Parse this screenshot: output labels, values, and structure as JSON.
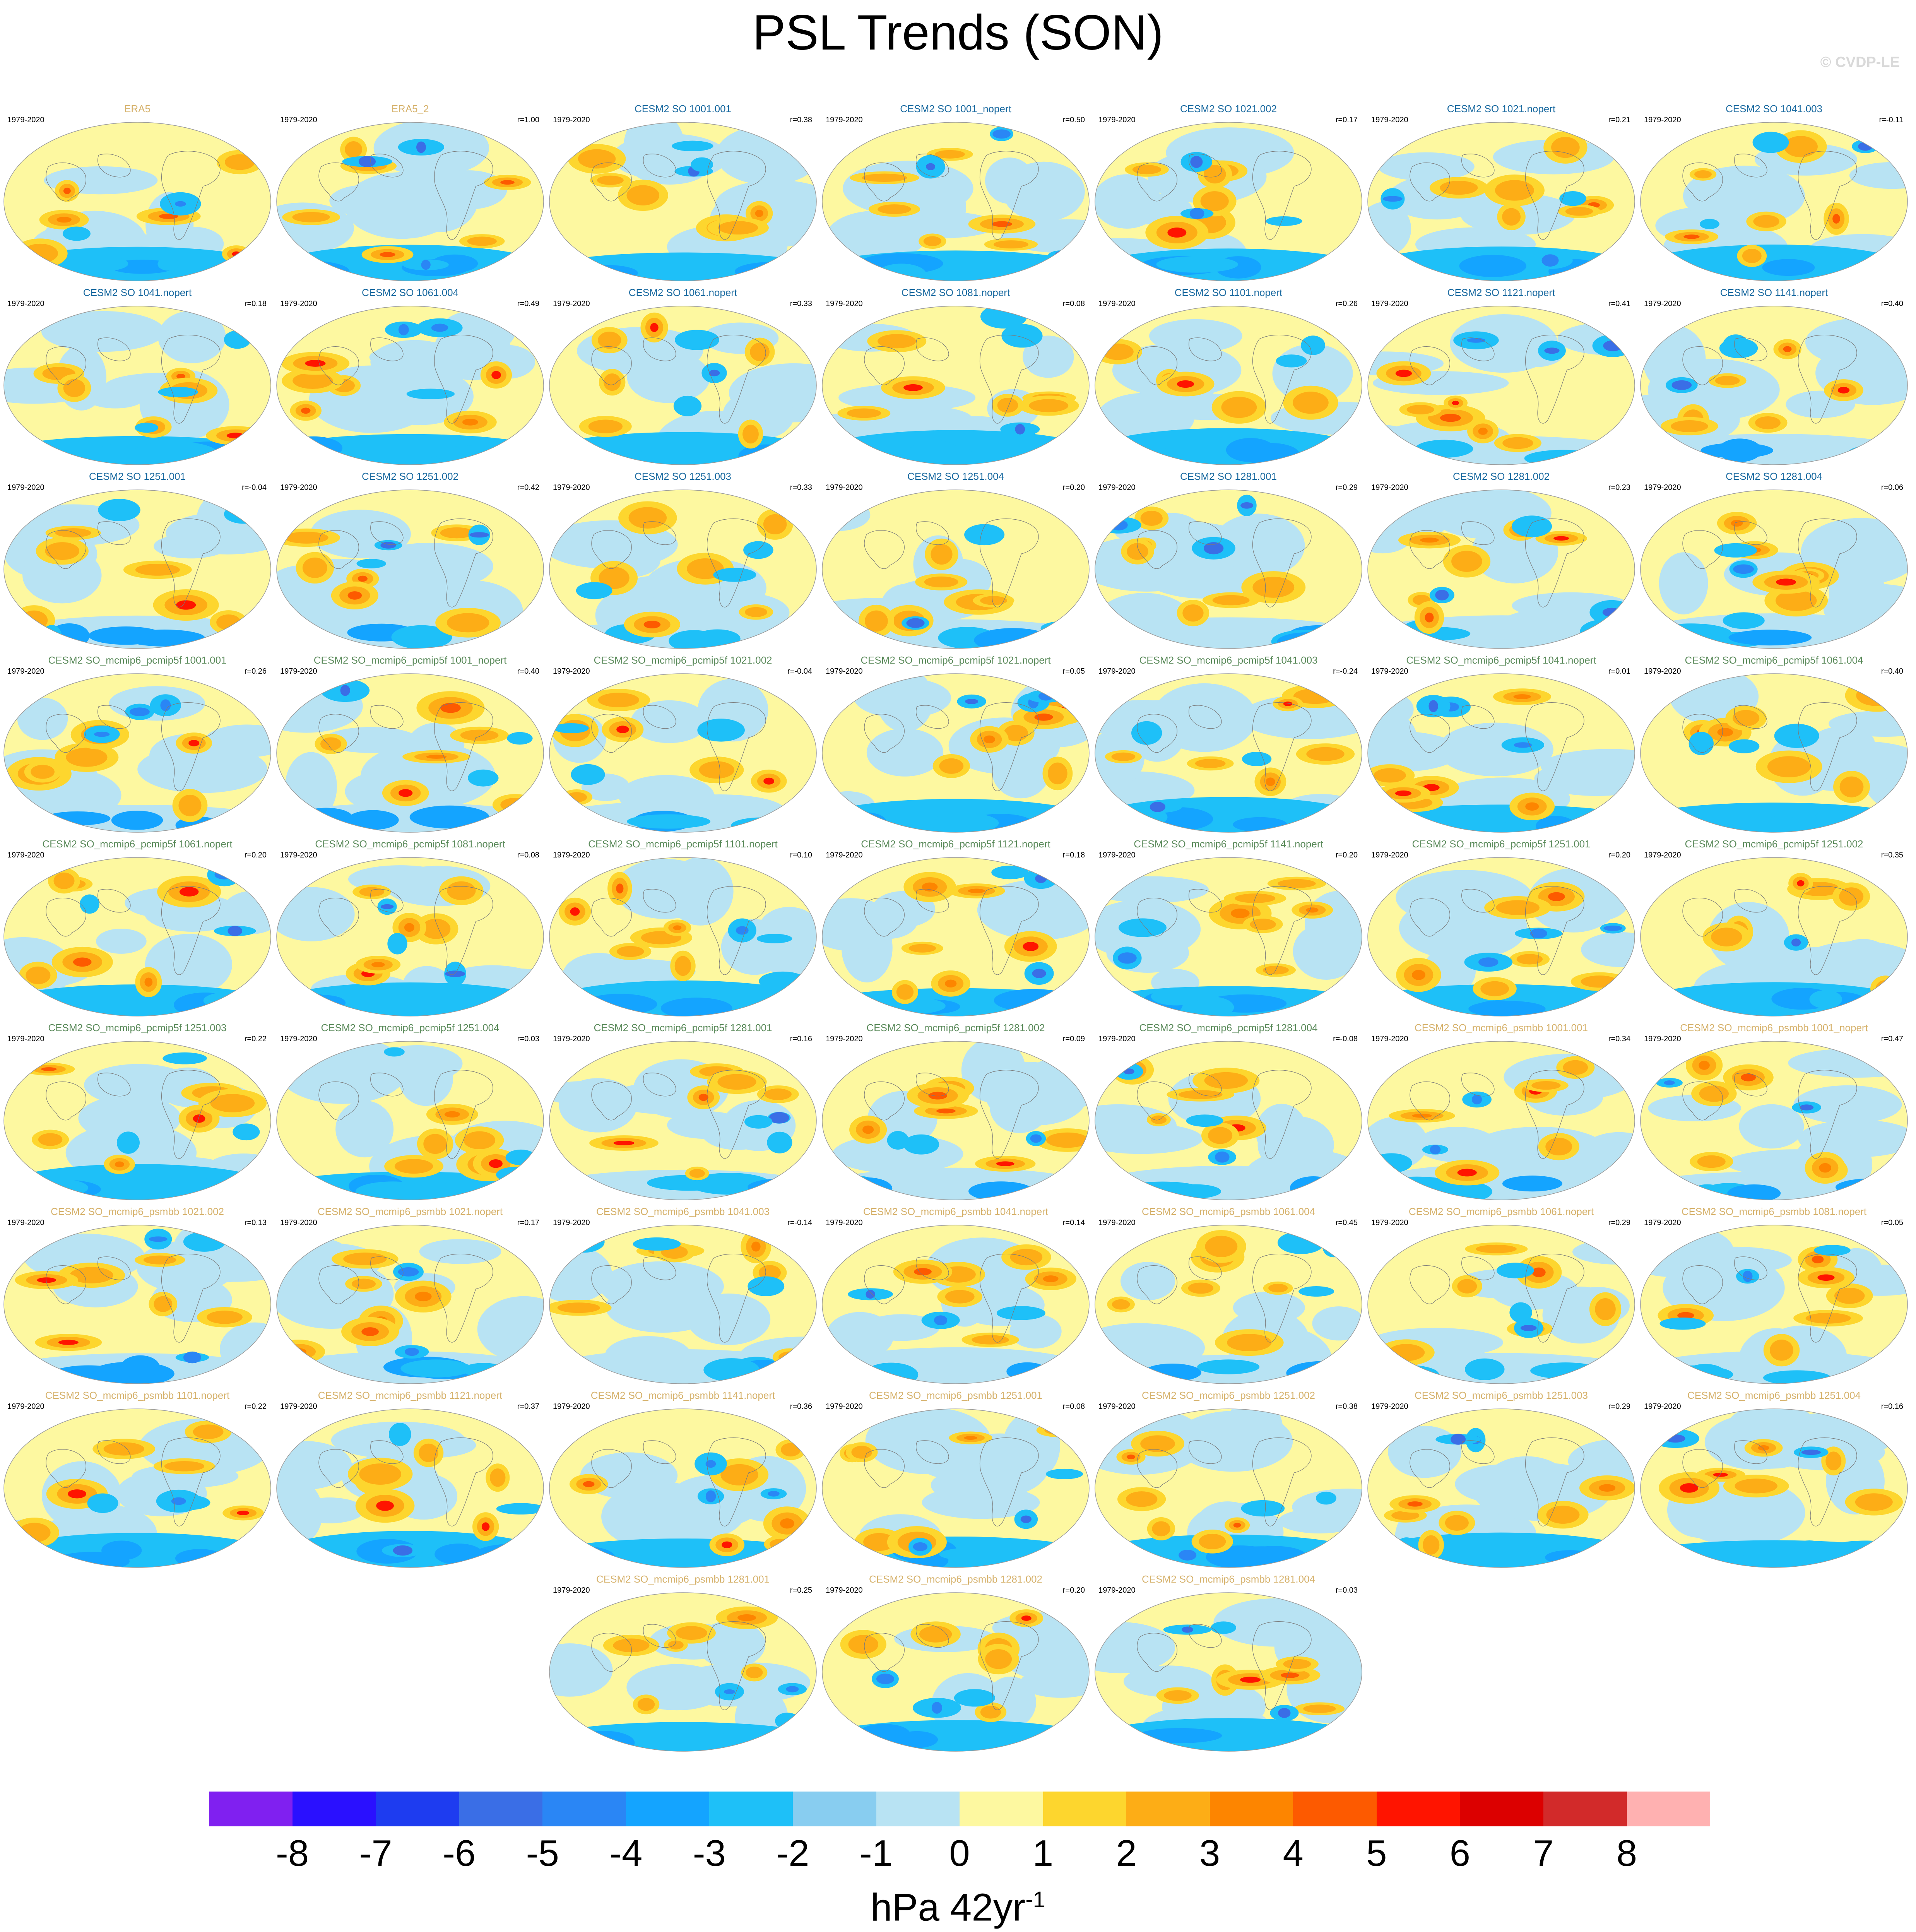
{
  "title": "PSL Trends (SON)",
  "watermark": "© CVDP-LE",
  "years": "1979-2020",
  "units": {
    "base": "hPa 42yr",
    "exponent": "-1"
  },
  "colorbar": {
    "colors": [
      "#8020f0",
      "#2a10ff",
      "#1e3cf0",
      "#3a6ee6",
      "#2a86f5",
      "#14a4ff",
      "#1ec0f8",
      "#88cdf0",
      "#b8e3f3",
      "#fdf8a0",
      "#fdd62e",
      "#fdad16",
      "#fd8500",
      "#fd5a00",
      "#ff1400",
      "#dc0000",
      "#d22a2a",
      "#ffb1b1"
    ],
    "labels": [
      "-8",
      "-7",
      "-6",
      "-5",
      "-4",
      "-3",
      "-2",
      "-1",
      "0",
      "1",
      "2",
      "3",
      "4",
      "5",
      "6",
      "7",
      "8"
    ]
  },
  "panels": [
    {
      "title": "ERA5",
      "r": "",
      "tc": "#d6b26c"
    },
    {
      "title": "ERA5_2",
      "r": "r=1.00",
      "tc": "#d6b26c"
    },
    {
      "title": "CESM2 SO 1001.001",
      "r": "r=0.38",
      "tc": "#1a6aa0"
    },
    {
      "title": "CESM2 SO 1001_nopert",
      "r": "r=0.50",
      "tc": "#1a6aa0"
    },
    {
      "title": "CESM2 SO 1021.002",
      "r": "r=0.17",
      "tc": "#1a6aa0"
    },
    {
      "title": "CESM2 SO 1021.nopert",
      "r": "r=0.21",
      "tc": "#1a6aa0"
    },
    {
      "title": "CESM2 SO 1041.003",
      "r": "r=-0.11",
      "tc": "#1a6aa0"
    },
    {
      "title": "CESM2 SO 1041.nopert",
      "r": "r=0.18",
      "tc": "#1a6aa0"
    },
    {
      "title": "CESM2 SO 1061.004",
      "r": "r=0.49",
      "tc": "#1a6aa0"
    },
    {
      "title": "CESM2 SO 1061.nopert",
      "r": "r=0.33",
      "tc": "#1a6aa0"
    },
    {
      "title": "CESM2 SO 1081.nopert",
      "r": "r=0.08",
      "tc": "#1a6aa0"
    },
    {
      "title": "CESM2 SO 1101.nopert",
      "r": "r=0.26",
      "tc": "#1a6aa0"
    },
    {
      "title": "CESM2 SO 1121.nopert",
      "r": "r=0.41",
      "tc": "#1a6aa0"
    },
    {
      "title": "CESM2 SO 1141.nopert",
      "r": "r=0.40",
      "tc": "#1a6aa0"
    },
    {
      "title": "CESM2 SO 1251.001",
      "r": "r=-0.04",
      "tc": "#1a6aa0"
    },
    {
      "title": "CESM2 SO 1251.002",
      "r": "r=0.42",
      "tc": "#1a6aa0"
    },
    {
      "title": "CESM2 SO 1251.003",
      "r": "r=0.33",
      "tc": "#1a6aa0"
    },
    {
      "title": "CESM2 SO 1251.004",
      "r": "r=0.20",
      "tc": "#1a6aa0"
    },
    {
      "title": "CESM2 SO 1281.001",
      "r": "r=0.29",
      "tc": "#1a6aa0"
    },
    {
      "title": "CESM2 SO 1281.002",
      "r": "r=0.23",
      "tc": "#1a6aa0"
    },
    {
      "title": "CESM2 SO 1281.004",
      "r": "r=0.06",
      "tc": "#1a6aa0"
    },
    {
      "title": "CESM2 SO_mcmip6_pcmip5f 1001.001",
      "r": "r=0.26",
      "tc": "#5a8a5a"
    },
    {
      "title": "CESM2 SO_mcmip6_pcmip5f 1001_nopert",
      "r": "r=0.40",
      "tc": "#5a8a5a"
    },
    {
      "title": "CESM2 SO_mcmip6_pcmip5f 1021.002",
      "r": "r=-0.04",
      "tc": "#5a8a5a"
    },
    {
      "title": "CESM2 SO_mcmip6_pcmip5f 1021.nopert",
      "r": "r=0.05",
      "tc": "#5a8a5a"
    },
    {
      "title": "CESM2 SO_mcmip6_pcmip5f 1041.003",
      "r": "r=-0.24",
      "tc": "#5a8a5a"
    },
    {
      "title": "CESM2 SO_mcmip6_pcmip5f 1041.nopert",
      "r": "r=0.01",
      "tc": "#5a8a5a"
    },
    {
      "title": "CESM2 SO_mcmip6_pcmip5f 1061.004",
      "r": "r=0.40",
      "tc": "#5a8a5a"
    },
    {
      "title": "CESM2 SO_mcmip6_pcmip5f 1061.nopert",
      "r": "r=0.20",
      "tc": "#5a8a5a"
    },
    {
      "title": "CESM2 SO_mcmip6_pcmip5f 1081.nopert",
      "r": "r=0.08",
      "tc": "#5a8a5a"
    },
    {
      "title": "CESM2 SO_mcmip6_pcmip5f 1101.nopert",
      "r": "r=0.10",
      "tc": "#5a8a5a"
    },
    {
      "title": "CESM2 SO_mcmip6_pcmip5f 1121.nopert",
      "r": "r=0.18",
      "tc": "#5a8a5a"
    },
    {
      "title": "CESM2 SO_mcmip6_pcmip5f 1141.nopert",
      "r": "r=0.20",
      "tc": "#5a8a5a"
    },
    {
      "title": "CESM2 SO_mcmip6_pcmip5f 1251.001",
      "r": "r=0.20",
      "tc": "#5a8a5a"
    },
    {
      "title": "CESM2 SO_mcmip6_pcmip5f 1251.002",
      "r": "r=0.35",
      "tc": "#5a8a5a"
    },
    {
      "title": "CESM2 SO_mcmip6_pcmip5f 1251.003",
      "r": "r=0.22",
      "tc": "#5a8a5a"
    },
    {
      "title": "CESM2 SO_mcmip6_pcmip5f 1251.004",
      "r": "r=0.03",
      "tc": "#5a8a5a"
    },
    {
      "title": "CESM2 SO_mcmip6_pcmip5f 1281.001",
      "r": "r=0.16",
      "tc": "#5a8a5a"
    },
    {
      "title": "CESM2 SO_mcmip6_pcmip5f 1281.002",
      "r": "r=0.09",
      "tc": "#5a8a5a"
    },
    {
      "title": "CESM2 SO_mcmip6_pcmip5f 1281.004",
      "r": "r=-0.08",
      "tc": "#5a8a5a"
    },
    {
      "title": "CESM2 SO_mcmip6_psmbb 1001.001",
      "r": "r=0.34",
      "tc": "#d6b26c"
    },
    {
      "title": "CESM2 SO_mcmip6_psmbb 1001_nopert",
      "r": "r=0.47",
      "tc": "#d6b26c"
    },
    {
      "title": "CESM2 SO_mcmip6_psmbb 1021.002",
      "r": "r=0.13",
      "tc": "#d6b26c"
    },
    {
      "title": "CESM2 SO_mcmip6_psmbb 1021.nopert",
      "r": "r=0.17",
      "tc": "#d6b26c"
    },
    {
      "title": "CESM2 SO_mcmip6_psmbb 1041.003",
      "r": "r=-0.14",
      "tc": "#d6b26c"
    },
    {
      "title": "CESM2 SO_mcmip6_psmbb 1041.nopert",
      "r": "r=0.14",
      "tc": "#d6b26c"
    },
    {
      "title": "CESM2 SO_mcmip6_psmbb 1061.004",
      "r": "r=0.45",
      "tc": "#d6b26c"
    },
    {
      "title": "CESM2 SO_mcmip6_psmbb 1061.nopert",
      "r": "r=0.29",
      "tc": "#d6b26c"
    },
    {
      "title": "CESM2 SO_mcmip6_psmbb 1081.nopert",
      "r": "r=0.05",
      "tc": "#d6b26c"
    },
    {
      "title": "CESM2 SO_mcmip6_psmbb 1101.nopert",
      "r": "r=0.22",
      "tc": "#d6b26c"
    },
    {
      "title": "CESM2 SO_mcmip6_psmbb 1121.nopert",
      "r": "r=0.37",
      "tc": "#d6b26c"
    },
    {
      "title": "CESM2 SO_mcmip6_psmbb 1141.nopert",
      "r": "r=0.36",
      "tc": "#d6b26c"
    },
    {
      "title": "CESM2 SO_mcmip6_psmbb 1251.001",
      "r": "r=0.08",
      "tc": "#d6b26c"
    },
    {
      "title": "CESM2 SO_mcmip6_psmbb 1251.002",
      "r": "r=0.38",
      "tc": "#d6b26c"
    },
    {
      "title": "CESM2 SO_mcmip6_psmbb 1251.003",
      "r": "r=0.29",
      "tc": "#d6b26c"
    },
    {
      "title": "CESM2 SO_mcmip6_psmbb 1251.004",
      "r": "r=0.16",
      "tc": "#d6b26c"
    },
    {
      "title": "CESM2 SO_mcmip6_psmbb 1281.001",
      "r": "r=0.25",
      "tc": "#d6b26c"
    },
    {
      "title": "CESM2 SO_mcmip6_psmbb 1281.002",
      "r": "r=0.20",
      "tc": "#d6b26c"
    },
    {
      "title": "CESM2 SO_mcmip6_psmbb 1281.004",
      "r": "r=0.03",
      "tc": "#d6b26c"
    }
  ]
}
